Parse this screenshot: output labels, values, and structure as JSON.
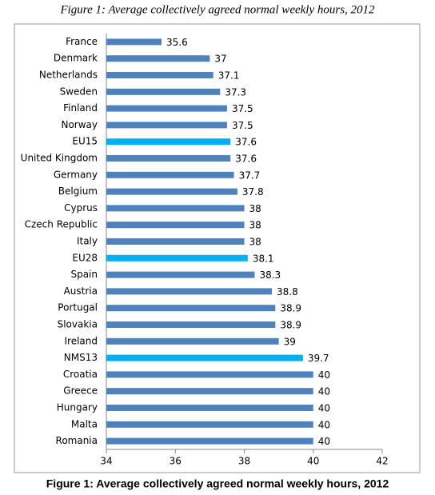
{
  "chart_data": {
    "type": "bar",
    "orientation": "horizontal",
    "title": "Figure 1: Average collectively agreed normal weekly hours, 2012",
    "caption": "Figure 1: Average collectively agreed normal weekly hours, 2012",
    "categories": [
      "France",
      "Denmark",
      "Netherlands",
      "Sweden",
      "Finland",
      "Norway",
      "EU15",
      "United Kingdom",
      "Germany",
      "Belgium",
      "Cyprus",
      "Czech Republic",
      "Italy",
      "EU28",
      "Spain",
      "Austria",
      "Portugal",
      "Slovakia",
      "Ireland",
      "NMS13",
      "Croatia",
      "Greece",
      "Hungary",
      "Malta",
      "Romania"
    ],
    "values": [
      35.6,
      37,
      37.1,
      37.3,
      37.5,
      37.5,
      37.6,
      37.6,
      37.7,
      37.8,
      38,
      38,
      38,
      38.1,
      38.3,
      38.8,
      38.9,
      38.9,
      39,
      39.7,
      40,
      40,
      40,
      40,
      40
    ],
    "colors": [
      "#4f81bd",
      "#4f81bd",
      "#4f81bd",
      "#4f81bd",
      "#4f81bd",
      "#4f81bd",
      "#00b0f0",
      "#4f81bd",
      "#4f81bd",
      "#4f81bd",
      "#4f81bd",
      "#4f81bd",
      "#4f81bd",
      "#00b0f0",
      "#4f81bd",
      "#4f81bd",
      "#4f81bd",
      "#4f81bd",
      "#4f81bd",
      "#00b0f0",
      "#4f81bd",
      "#4f81bd",
      "#4f81bd",
      "#4f81bd",
      "#4f81bd"
    ],
    "xlim": [
      34,
      42
    ],
    "xticks": [
      34,
      36,
      38,
      40,
      42
    ],
    "grid": false
  }
}
